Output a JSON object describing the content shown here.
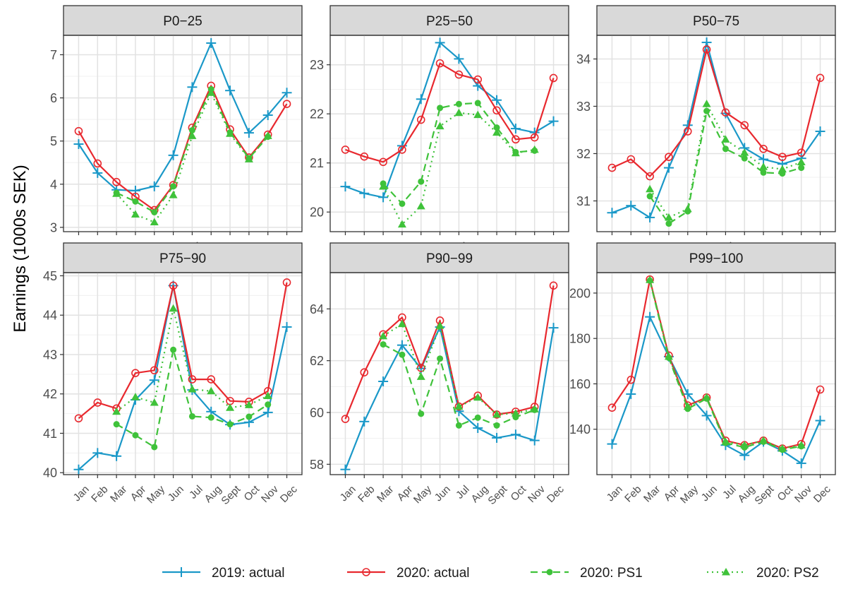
{
  "chart_data": {
    "type": "line",
    "ylabel": "Earnings (1000s SEK)",
    "xlabel": "",
    "categories": [
      "Jan",
      "Feb",
      "Mar",
      "Apr",
      "May",
      "Jun",
      "Jul",
      "Aug",
      "Sept",
      "Oct",
      "Nov",
      "Dec"
    ],
    "legend": {
      "position": "bottom",
      "entries": [
        {
          "label": "2019: actual",
          "color": "#1A98C8",
          "linestyle": "solid",
          "marker": "plus"
        },
        {
          "label": "2020: actual",
          "color": "#E8282E",
          "linestyle": "solid",
          "marker": "open-circle"
        },
        {
          "label": "2020: PS1",
          "color": "#3FC23A",
          "linestyle": "dashed",
          "marker": "filled-circle"
        },
        {
          "label": "2020: PS2",
          "color": "#3FC23A",
          "linestyle": "dotted",
          "marker": "filled-triangle"
        }
      ]
    },
    "panels": [
      {
        "strip": "P0−25",
        "ylim": [
          2.9,
          7.45
        ],
        "yticks": [
          3,
          4,
          5,
          6,
          7
        ],
        "series": [
          {
            "key": "actual2019",
            "values": [
              4.93,
              4.26,
              3.87,
              3.85,
              3.95,
              4.67,
              6.25,
              7.27,
              6.17,
              5.19,
              5.6,
              6.12
            ]
          },
          {
            "key": "actual2020",
            "values": [
              5.23,
              4.48,
              4.05,
              3.71,
              3.4,
              3.98,
              5.31,
              6.28,
              5.27,
              4.62,
              5.15,
              5.86
            ]
          },
          {
            "key": "ps1",
            "values": [
              null,
              null,
              3.8,
              3.6,
              3.35,
              3.95,
              5.25,
              6.2,
              5.2,
              4.6,
              5.1,
              null
            ]
          },
          {
            "key": "ps2",
            "values": [
              null,
              null,
              3.78,
              3.3,
              3.12,
              3.75,
              5.12,
              6.12,
              5.17,
              4.58,
              5.12,
              null
            ]
          }
        ]
      },
      {
        "strip": "P25−50",
        "ylim": [
          19.6,
          23.6
        ],
        "yticks": [
          20,
          21,
          22,
          23
        ],
        "series": [
          {
            "key": "actual2019",
            "values": [
              20.52,
              20.38,
              20.3,
              21.35,
              22.3,
              23.45,
              23.12,
              22.57,
              22.28,
              21.7,
              21.62,
              21.85
            ]
          },
          {
            "key": "actual2020",
            "values": [
              21.27,
              21.13,
              21.02,
              21.27,
              21.88,
              23.03,
              22.8,
              22.7,
              22.07,
              21.48,
              21.52,
              22.73
            ]
          },
          {
            "key": "ps1",
            "values": [
              null,
              null,
              20.58,
              20.17,
              20.62,
              22.12,
              22.2,
              22.22,
              21.72,
              21.22,
              21.25,
              null
            ]
          },
          {
            "key": "ps2",
            "values": [
              null,
              null,
              20.52,
              19.75,
              20.12,
              21.75,
              22.02,
              21.98,
              21.62,
              21.2,
              21.27,
              null
            ]
          }
        ]
      },
      {
        "strip": "P50−75",
        "ylim": [
          30.35,
          34.5
        ],
        "yticks": [
          31,
          32,
          33,
          34
        ],
        "series": [
          {
            "key": "actual2019",
            "values": [
              30.75,
              30.9,
              30.65,
              31.7,
              32.6,
              34.35,
              32.85,
              32.12,
              31.88,
              31.78,
              31.9,
              32.47
            ]
          },
          {
            "key": "actual2020",
            "values": [
              31.7,
              31.88,
              31.52,
              31.93,
              32.47,
              34.2,
              32.87,
              32.6,
              32.1,
              31.93,
              32.02,
              33.6
            ]
          },
          {
            "key": "ps1",
            "values": [
              null,
              null,
              31.1,
              30.52,
              30.78,
              32.9,
              32.1,
              31.9,
              31.6,
              31.58,
              31.7,
              null
            ]
          },
          {
            "key": "ps2",
            "values": [
              null,
              null,
              31.25,
              30.65,
              30.83,
              33.05,
              32.3,
              32.02,
              31.72,
              31.67,
              31.82,
              null
            ]
          }
        ]
      },
      {
        "strip": "P75−90",
        "ylim": [
          39.95,
          45.08
        ],
        "yticks": [
          40,
          41,
          42,
          43,
          44,
          45
        ],
        "series": [
          {
            "key": "actual2019",
            "values": [
              40.08,
              40.5,
              40.42,
              41.85,
              42.35,
              44.75,
              42.1,
              41.55,
              41.22,
              41.28,
              41.53,
              43.7
            ]
          },
          {
            "key": "actual2020",
            "values": [
              41.38,
              41.78,
              41.63,
              42.53,
              42.6,
              44.75,
              42.37,
              42.37,
              41.82,
              41.8,
              42.07,
              44.83
            ]
          },
          {
            "key": "ps1",
            "values": [
              null,
              null,
              41.23,
              40.95,
              40.65,
              43.12,
              41.43,
              41.4,
              41.23,
              41.42,
              41.73,
              null
            ]
          },
          {
            "key": "ps2",
            "values": [
              null,
              null,
              41.55,
              41.92,
              41.78,
              44.17,
              42.12,
              42.07,
              41.65,
              41.72,
              41.95,
              null
            ]
          }
        ]
      },
      {
        "strip": "P90−99",
        "ylim": [
          57.6,
          65.4
        ],
        "yticks": [
          58,
          60,
          62,
          64
        ],
        "series": [
          {
            "key": "actual2019",
            "values": [
              57.8,
              59.65,
              61.2,
              62.6,
              61.7,
              63.3,
              60.05,
              59.4,
              59.02,
              59.15,
              58.92,
              63.27
            ]
          },
          {
            "key": "actual2020",
            "values": [
              59.75,
              61.55,
              63.02,
              63.67,
              61.72,
              63.55,
              60.23,
              60.65,
              59.92,
              60.03,
              60.22,
              64.9
            ]
          },
          {
            "key": "ps1",
            "values": [
              null,
              null,
              62.63,
              62.23,
              59.95,
              62.08,
              59.5,
              59.8,
              59.5,
              59.82,
              60.1,
              null
            ]
          },
          {
            "key": "ps2",
            "values": [
              null,
              null,
              62.95,
              63.42,
              61.38,
              63.35,
              60.23,
              60.58,
              59.92,
              59.97,
              60.13,
              null
            ]
          }
        ]
      },
      {
        "strip": "P99−100",
        "ylim": [
          120,
          209
        ],
        "yticks": [
          140,
          160,
          180,
          200
        ],
        "series": [
          {
            "key": "actual2019",
            "values": [
              133.5,
              155.5,
              189.5,
              172,
              155.5,
              146,
              133,
              128.5,
              134.5,
              130.5,
              125,
              143.8
            ]
          },
          {
            "key": "actual2020",
            "values": [
              149.5,
              161.8,
              206,
              172.5,
              150.5,
              154,
              135,
              133,
              135,
              131.5,
              133.5,
              157.5
            ]
          },
          {
            "key": "ps1",
            "values": [
              null,
              null,
              205.5,
              171.5,
              149,
              153.5,
              134,
              132,
              134.5,
              131,
              132.5,
              null
            ]
          },
          {
            "key": "ps2",
            "values": [
              null,
              null,
              205.8,
              172,
              150,
              154,
              134.5,
              133,
              135,
              131.5,
              133,
              null
            ]
          }
        ]
      }
    ]
  }
}
